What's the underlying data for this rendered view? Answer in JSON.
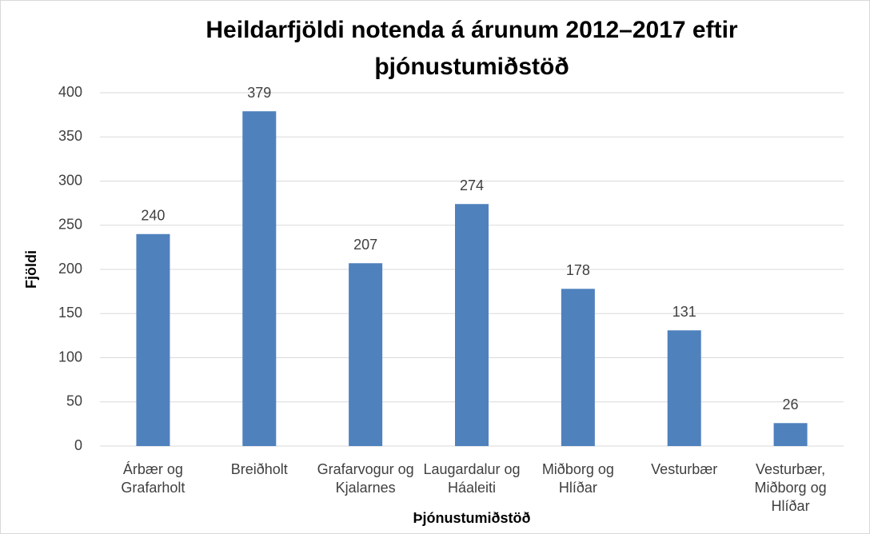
{
  "chart_data": {
    "type": "bar",
    "title": "Heildarfjöldi notenda á árunum 2012–2017 eftir þjónustumiðstöð",
    "x_label": "Þjónustumiðstöð",
    "y_label": "Fjöldi",
    "categories": [
      "Árbær og Grafarholt",
      "Breiðholt",
      "Grafarvogur og Kjalarnes",
      "Laugardalur og Háaleiti",
      "Miðborg og Hlíðar",
      "Vesturbær",
      "Vesturbær, Miðborg og Hlíðar"
    ],
    "values": [
      240,
      379,
      207,
      274,
      178,
      131,
      26
    ],
    "color": "#4f81bd",
    "ylim": [
      0,
      400
    ],
    "yticks": [
      0,
      50,
      100,
      150,
      200,
      250,
      300,
      350,
      400
    ],
    "grid": true
  }
}
